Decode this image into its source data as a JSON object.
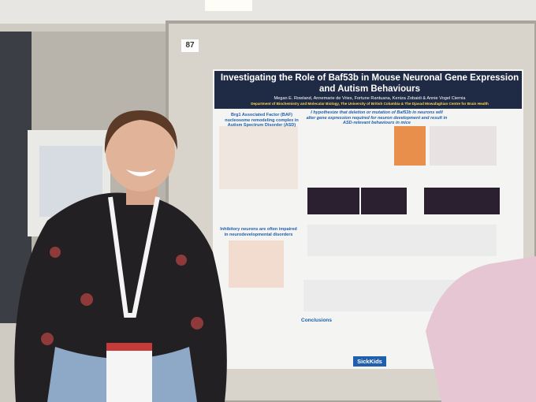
{
  "board_number": "87",
  "poster": {
    "title": "Investigating the Role of Baf53b in Mouse Neuronal Gene Expression and Autism Behaviours",
    "authors": "Megan E. Rowland, Annemarie de Vries, Fortune Rantuana, Keniza Zobaidi & Annie Vogel Ciernia",
    "affiliation": "Department of Biochemistry and Molecular Biology, The University of British Columbia & The Djavad Mowafaghian Centre for Brain Health",
    "sections": [
      "Brg1 Associated Factor (BAF) nucleosome remodeling complex in Autism Spectrum Disorder (ASD)",
      "I hypothesize that deletion or mutation of Baf53b in neurons will alter gene expression required for neuron development and result in ASD-relevant behaviours in mice",
      "Inhibitory neurons are often impaired in neurodevelopmental disorders",
      "Conclusions"
    ],
    "logos": [
      "SickKids"
    ]
  }
}
